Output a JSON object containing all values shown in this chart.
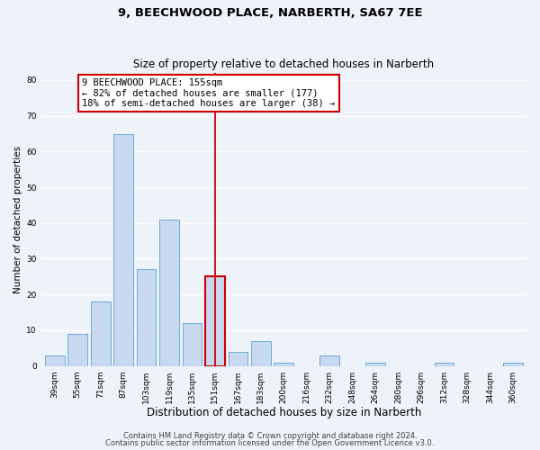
{
  "title": "9, BEECHWOOD PLACE, NARBERTH, SA67 7EE",
  "subtitle": "Size of property relative to detached houses in Narberth",
  "xlabel": "Distribution of detached houses by size in Narberth",
  "ylabel": "Number of detached properties",
  "bar_labels": [
    "39sqm",
    "55sqm",
    "71sqm",
    "87sqm",
    "103sqm",
    "119sqm",
    "135sqm",
    "151sqm",
    "167sqm",
    "183sqm",
    "200sqm",
    "216sqm",
    "232sqm",
    "248sqm",
    "264sqm",
    "280sqm",
    "296sqm",
    "312sqm",
    "328sqm",
    "344sqm",
    "360sqm"
  ],
  "bar_heights": [
    3,
    9,
    18,
    65,
    27,
    41,
    12,
    25,
    4,
    7,
    1,
    0,
    3,
    0,
    1,
    0,
    0,
    1,
    0,
    0,
    1
  ],
  "bar_color": "#c8d9ef",
  "bar_edge_color": "#6baed6",
  "highlight_bar_index": 7,
  "highlight_bar_edge_color": "#cc0000",
  "vline_color": "#cc0000",
  "annotation_text": "9 BEECHWOOD PLACE: 155sqm\n← 82% of detached houses are smaller (177)\n18% of semi-detached houses are larger (38) →",
  "annotation_box_color": "#ffffff",
  "annotation_box_edge_color": "#cc0000",
  "ylim": [
    0,
    82
  ],
  "yticks": [
    0,
    10,
    20,
    30,
    40,
    50,
    60,
    70,
    80
  ],
  "footer_line1": "Contains HM Land Registry data © Crown copyright and database right 2024.",
  "footer_line2": "Contains public sector information licensed under the Open Government Licence v3.0.",
  "background_color": "#eef2f9",
  "plot_bg_color": "#eef2f9",
  "grid_color": "#ffffff",
  "title_fontsize": 9.5,
  "subtitle_fontsize": 8.5,
  "xlabel_fontsize": 8.5,
  "ylabel_fontsize": 7.5,
  "tick_fontsize": 6.5,
  "annotation_fontsize": 7.5,
  "footer_fontsize": 6.0
}
